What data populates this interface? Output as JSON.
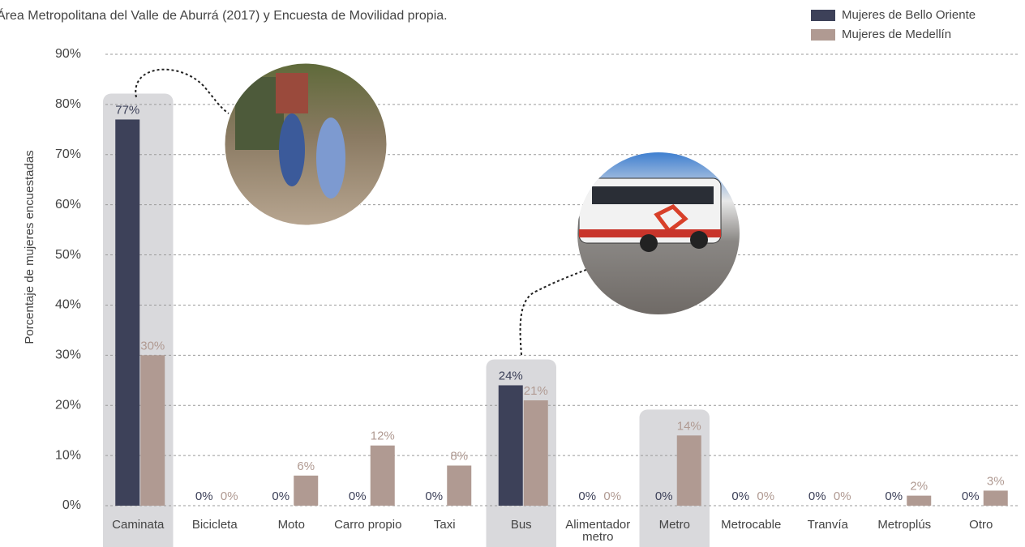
{
  "chart_data": {
    "type": "bar",
    "subtitle": "Área Metropolitana del Valle de Aburrá (2017) y Encuesta de Movilidad propia.",
    "y_label": "Porcentaje de mujeres encuestadas",
    "categories": [
      "Caminata",
      "Bicicleta",
      "Moto",
      "Carro propio",
      "Taxi",
      "Bus",
      "Alimentador metro",
      "Metro",
      "Metrocable",
      "Tranvía",
      "Metroplús",
      "Otro"
    ],
    "series": [
      {
        "name": "Mujeres de Bello Oriente",
        "color": "#3d4159",
        "values": [
          77,
          0,
          0,
          0,
          0,
          24,
          0,
          0,
          0,
          0,
          0,
          0
        ],
        "value_labels": [
          "77%",
          "0%",
          "0%",
          "0%",
          "0%",
          "24%",
          "0%",
          "0%",
          "0%",
          "0%",
          "0%",
          "0%"
        ]
      },
      {
        "name": "Mujeres de Medellín",
        "color": "#b09a92",
        "values": [
          30,
          0,
          6,
          12,
          8,
          21,
          0,
          14,
          0,
          0,
          2,
          3
        ],
        "value_labels": [
          "30%",
          "0%",
          "6%",
          "12%",
          "8%",
          "21%",
          "0%",
          "14%",
          "0%",
          "0%",
          "2%",
          "3%"
        ]
      }
    ],
    "highlighted": [
      0,
      5,
      7
    ],
    "ylim": [
      0,
      90
    ],
    "yticks": [
      {
        "value": 0,
        "label": "0%"
      },
      {
        "value": 10,
        "label": "10%"
      },
      {
        "value": 20,
        "label": "20%"
      },
      {
        "value": 30,
        "label": "30%"
      },
      {
        "value": 40,
        "label": "40%"
      },
      {
        "value": 50,
        "label": "50%"
      },
      {
        "value": 60,
        "label": "60%"
      },
      {
        "value": 70,
        "label": "70%"
      },
      {
        "value": 80,
        "label": "80%"
      },
      {
        "value": 90,
        "label": "90%"
      }
    ],
    "grid": true,
    "legend": "top-right"
  }
}
